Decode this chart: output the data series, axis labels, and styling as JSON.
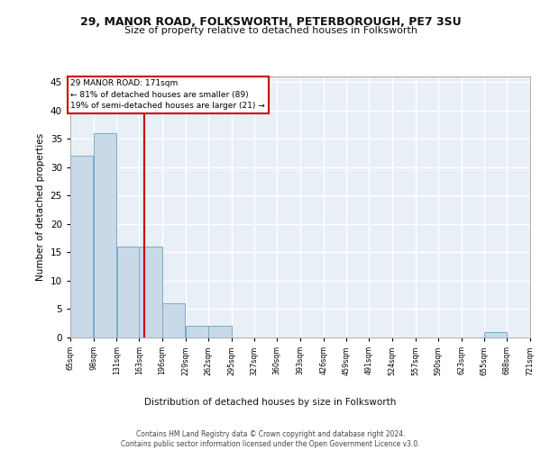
{
  "title1": "29, MANOR ROAD, FOLKSWORTH, PETERBOROUGH, PE7 3SU",
  "title2": "Size of property relative to detached houses in Folksworth",
  "xlabel": "Distribution of detached houses by size in Folksworth",
  "ylabel": "Number of detached properties",
  "bar_color": "#c9d9e8",
  "bar_edge_color": "#7aaac8",
  "background_color": "#e8eff6",
  "grid_color": "#ffffff",
  "red_line_x": 171,
  "annotation_line1": "29 MANOR ROAD: 171sqm",
  "annotation_line2": "← 81% of detached houses are smaller (89)",
  "annotation_line3": "19% of semi-detached houses are larger (21) →",
  "annotation_box_color": "#ffffff",
  "annotation_box_edge_color": "#cc0000",
  "footnote": "Contains HM Land Registry data © Crown copyright and database right 2024.\nContains public sector information licensed under the Open Government Licence v3.0.",
  "bins": [
    65,
    98,
    131,
    163,
    196,
    229,
    262,
    295,
    327,
    360,
    393,
    426,
    459,
    491,
    524,
    557,
    590,
    623,
    655,
    688,
    721
  ],
  "counts": [
    32,
    36,
    16,
    16,
    6,
    2,
    2,
    0,
    0,
    0,
    0,
    0,
    0,
    0,
    0,
    0,
    0,
    0,
    1,
    0,
    0
  ],
  "ylim": [
    0,
    46
  ],
  "yticks": [
    0,
    5,
    10,
    15,
    20,
    25,
    30,
    35,
    40,
    45
  ],
  "title1_fontsize": 9,
  "title2_fontsize": 8
}
